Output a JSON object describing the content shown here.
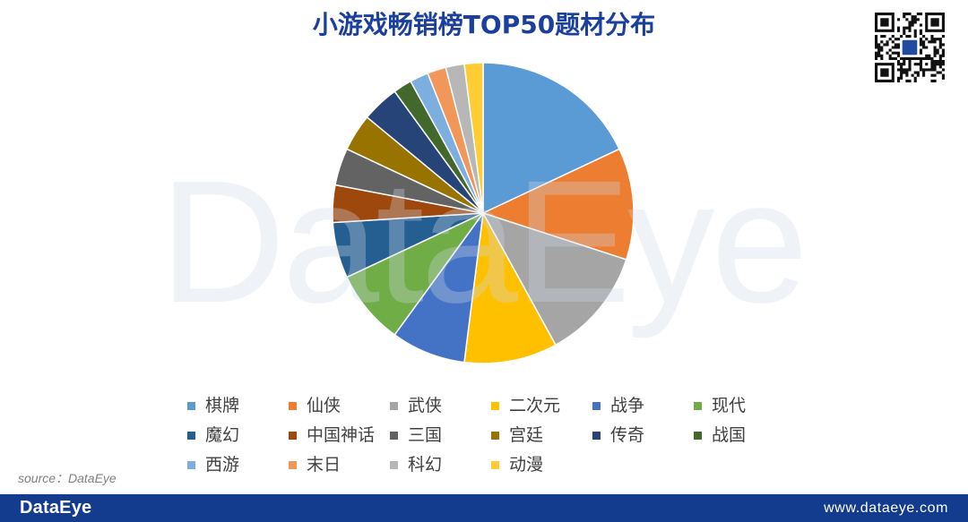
{
  "watermark": "DataEye",
  "source": "source：DataEye",
  "footer": {
    "logo": "DataEye",
    "url": "www.dataeye.com"
  },
  "theme": {
    "title": "#1B3F9C",
    "footer": "#133C8F",
    "legend_text": "#404040",
    "source_text": "#7F7F7F",
    "qr_logo": "#1F4BA0"
  },
  "chart_data": {
    "type": "pie",
    "title": "小游戏畅销榜TOP50题材分布",
    "categories": [
      "棋牌",
      "仙侠",
      "武侠",
      "二次元",
      "战争",
      "现代",
      "魔幻",
      "中国神话",
      "三国",
      "宫廷",
      "传奇",
      "战国",
      "西游",
      "末日",
      "科幻",
      "动漫"
    ],
    "values": [
      9,
      6,
      6,
      5,
      4,
      4,
      3,
      2,
      2,
      2,
      2,
      1,
      1,
      1,
      1,
      1
    ],
    "colors": [
      "#5B9BD5",
      "#ED7D31",
      "#A5A5A5",
      "#FFC000",
      "#4472C4",
      "#70AD47",
      "#255E91",
      "#9E480E",
      "#636363",
      "#997300",
      "#264478",
      "#43682B",
      "#7CAFDD",
      "#F1975A",
      "#B7B7B7",
      "#FFCD33"
    ],
    "legend": "bottom",
    "data_labels": false
  }
}
